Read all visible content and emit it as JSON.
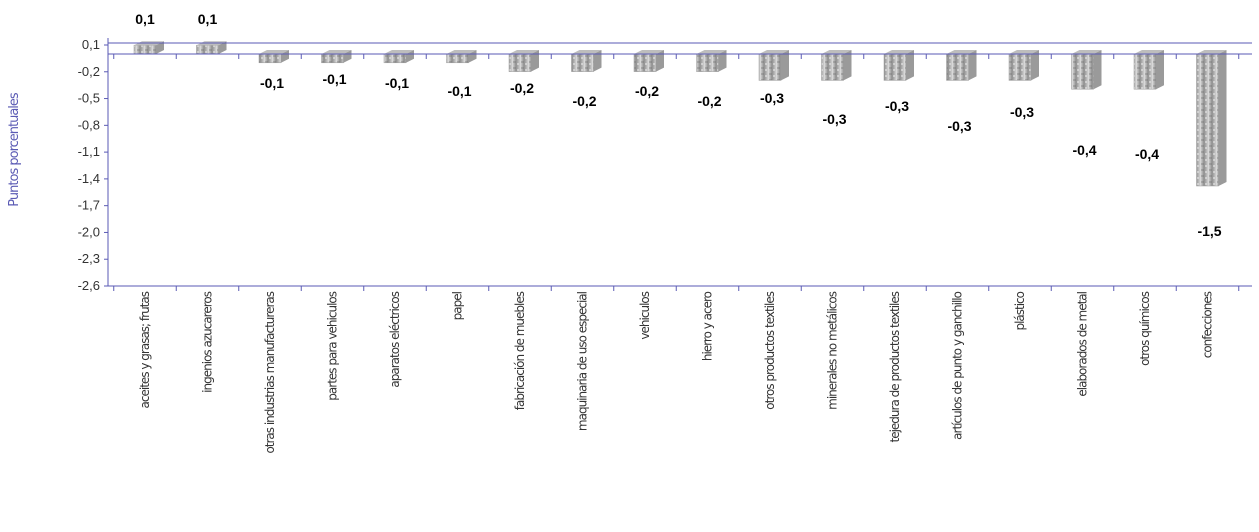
{
  "chart_data": {
    "type": "bar",
    "title": "",
    "xlabel": "",
    "ylabel": "Puntos porcentuales",
    "ylim": [
      -2.6,
      0.1
    ],
    "yticks": [
      "0,1",
      "-0,2",
      "-0,5",
      "-0,8",
      "-1,1",
      "-1,4",
      "-1,7",
      "-2,0",
      "-2,3",
      "-2,6"
    ],
    "categories": [
      "aceites y grasas; frutas",
      "ingenios azucareros",
      "otras industrias manufactureras",
      "partes para vehiculos",
      "aparatos eléctricos",
      "papel",
      "fabricación de muebles",
      "maquinaria de uso especial",
      "vehiculos",
      "hierro y acero",
      "otros productos textiles",
      "minerales no metálicos",
      "tejedura de productos textiles",
      "artículos de punto y ganchillo",
      "plástico",
      "elaborados de metal",
      "otros químicos",
      "confecciones"
    ],
    "values": [
      0.1,
      0.1,
      -0.1,
      -0.1,
      -0.1,
      -0.1,
      -0.2,
      -0.2,
      -0.2,
      -0.2,
      -0.3,
      -0.3,
      -0.3,
      -0.3,
      -0.3,
      -0.4,
      -0.4,
      -1.5
    ],
    "value_labels": [
      "0,1",
      "0,1",
      "-0,1",
      "-0,1",
      "-0,1",
      "-0,1",
      "-0,2",
      "-0,2",
      "-0,2",
      "-0,2",
      "-0,3",
      "-0,3",
      "-0,3",
      "-0,3",
      "-0,3",
      "-0,4",
      "-0,4",
      "-1,5"
    ],
    "grid": false,
    "legend": "none",
    "colors": {
      "axis": "#5a5ab4",
      "bar_light": "#d4d4d4",
      "bar_dark": "#7a7a7a",
      "bar_top": "#bdbdbd",
      "bar_side": "#9a9a9a"
    }
  }
}
